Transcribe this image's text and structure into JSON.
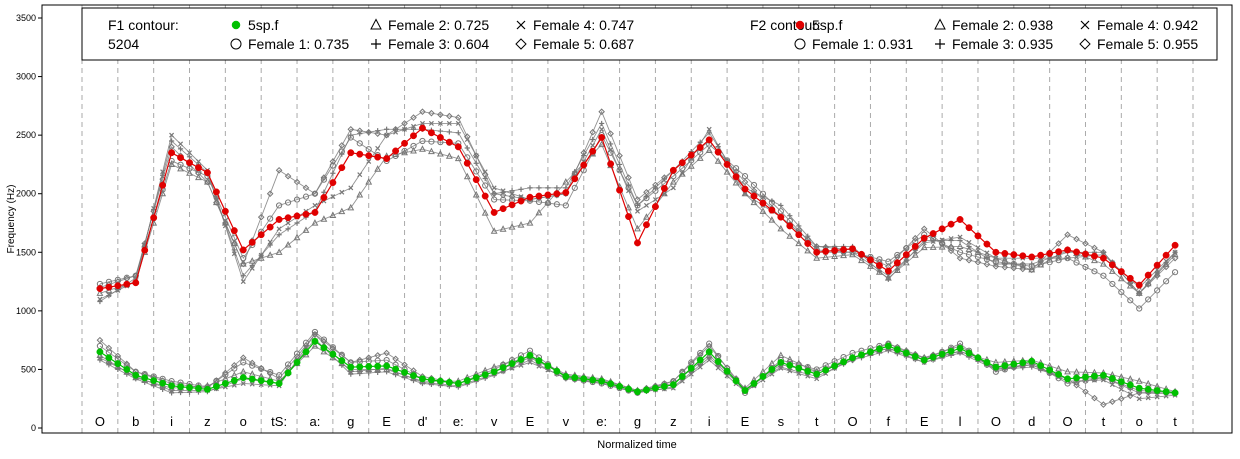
{
  "chart_data": {
    "type": "line",
    "xlabel": "Normalized time",
    "ylabel": "Frequency (Hz)",
    "ylim": [
      0,
      3600
    ],
    "yticks": [
      0,
      500,
      1000,
      1500,
      2000,
      2500,
      3000,
      3500
    ],
    "grid": "vertical dashed segment boundaries",
    "segments": [
      "O",
      "b",
      "i",
      "z",
      "o",
      "tS:",
      "a:",
      "g",
      "E",
      "d'",
      "e:",
      "v",
      "E",
      "v",
      "e:",
      "g",
      "z",
      "i",
      "E",
      "s",
      "t",
      "O",
      "f",
      "E",
      "l",
      "O",
      "d",
      "O",
      "t",
      "o",
      "t"
    ],
    "legend": {
      "position": "top",
      "f1_title": "F1 contour:",
      "f1_subtitle": "5204",
      "f1_series": [
        {
          "symbol": "filled-circle",
          "label": "5sp.f"
        },
        {
          "symbol": "open-circle",
          "label": "Female 1: 0.735"
        },
        {
          "symbol": "triangle",
          "label": "Female 2: 0.725"
        },
        {
          "symbol": "plus",
          "label": "Female 3: 0.604"
        },
        {
          "symbol": "cross",
          "label": "Female 4: 0.747"
        },
        {
          "symbol": "diamond",
          "label": "Female 5: 0.687"
        }
      ],
      "f2_title": "F2 contour:",
      "f2_series": [
        {
          "symbol": "filled-circle",
          "label": "5sp.f"
        },
        {
          "symbol": "open-circle",
          "label": "Female 1: 0.931"
        },
        {
          "symbol": "triangle",
          "label": "Female 2: 0.938"
        },
        {
          "symbol": "plus",
          "label": "Female 3: 0.935"
        },
        {
          "symbol": "cross",
          "label": "Female 4: 0.942"
        },
        {
          "symbol": "diamond",
          "label": "Female 5: 0.955"
        }
      ]
    },
    "colors": {
      "f1_mean": "#00c000",
      "f2_mean": "#e00000",
      "speakers": "#777777",
      "grid": "#aaaaaa"
    },
    "f2_series": [
      {
        "name": "5sp.f",
        "role": "mean",
        "values": [
          1190,
          1240,
          2350,
          2180,
          1520,
          1780,
          1840,
          2350,
          2300,
          2560,
          2400,
          1840,
          1970,
          2010,
          2480,
          1580,
          2200,
          2460,
          2040,
          1800,
          1500,
          1530,
          1340,
          1620,
          1780,
          1500,
          1460,
          1520,
          1450,
          1220,
          1560
        ]
      },
      {
        "name": "Female 1",
        "values": [
          1230,
          1300,
          2280,
          2150,
          1450,
          1900,
          2000,
          2480,
          2280,
          2450,
          2430,
          1950,
          1940,
          1900,
          2500,
          1900,
          2150,
          2420,
          2150,
          1850,
          1520,
          1500,
          1420,
          1650,
          1500,
          1420,
          1380,
          1450,
          1300,
          1020,
          1330
        ]
      },
      {
        "name": "Female 2",
        "values": [
          1150,
          1250,
          2250,
          2100,
          1400,
          1500,
          1750,
          1880,
          2320,
          2380,
          2300,
          1680,
          1750,
          2100,
          2420,
          1700,
          2100,
          2370,
          2000,
          1700,
          1450,
          1480,
          1280,
          1540,
          1550,
          1450,
          1350,
          1520,
          1400,
          1150,
          1480
        ]
      },
      {
        "name": "Female 3",
        "values": [
          1080,
          1280,
          2450,
          2180,
          1300,
          1650,
          1850,
          2500,
          2550,
          2550,
          2520,
          2000,
          2050,
          2050,
          2600,
          1900,
          2200,
          2520,
          2050,
          1900,
          1550,
          1550,
          1270,
          1600,
          1600,
          1400,
          1400,
          1500,
          1500,
          1150,
          1500
        ]
      },
      {
        "name": "Female 4",
        "values": [
          1100,
          1250,
          2500,
          2200,
          1250,
          1700,
          1900,
          2050,
          2500,
          2600,
          2600,
          2050,
          1950,
          2000,
          2550,
          1850,
          2050,
          2550,
          2000,
          1800,
          1500,
          1500,
          1300,
          1580,
          1630,
          1450,
          1450,
          1450,
          1480,
          1200,
          1500
        ]
      },
      {
        "name": "Female 5",
        "values": [
          1200,
          1300,
          2400,
          2100,
          1400,
          2200,
          2000,
          2550,
          2500,
          2700,
          2650,
          2000,
          1950,
          2000,
          2700,
          1950,
          2200,
          2450,
          2100,
          1800,
          1550,
          1520,
          1380,
          1700,
          1450,
          1380,
          1350,
          1650,
          1500,
          1150,
          1450
        ]
      }
    ],
    "f1_series": [
      {
        "name": "5sp.f",
        "role": "mean",
        "values": [
          650,
          450,
          360,
          330,
          430,
          380,
          740,
          520,
          530,
          420,
          380,
          480,
          620,
          440,
          400,
          310,
          370,
          650,
          320,
          560,
          460,
          600,
          700,
          580,
          680,
          520,
          570,
          420,
          450,
          340,
          300
        ]
      },
      {
        "name": "Female 1",
        "values": [
          700,
          480,
          400,
          350,
          560,
          450,
          820,
          560,
          580,
          420,
          380,
          500,
          660,
          430,
          380,
          300,
          400,
          720,
          300,
          580,
          500,
          640,
          720,
          580,
          720,
          480,
          560,
          380,
          430,
          320,
          300
        ]
      },
      {
        "name": "Female 2",
        "values": [
          620,
          430,
          340,
          360,
          480,
          400,
          700,
          500,
          500,
          400,
          400,
          520,
          610,
          460,
          420,
          320,
          380,
          620,
          340,
          620,
          480,
          600,
          680,
          600,
          650,
          560,
          580,
          480,
          470,
          400,
          310
        ]
      },
      {
        "name": "Female 3",
        "values": [
          580,
          420,
          300,
          310,
          420,
          380,
          760,
          460,
          480,
          380,
          350,
          450,
          580,
          420,
          380,
          300,
          350,
          600,
          330,
          520,
          440,
          580,
          660,
          560,
          640,
          500,
          520,
          420,
          430,
          300,
          290
        ]
      },
      {
        "name": "Female 4",
        "values": [
          600,
          440,
          320,
          320,
          380,
          360,
          800,
          480,
          510,
          390,
          360,
          460,
          560,
          430,
          390,
          310,
          340,
          580,
          310,
          510,
          420,
          600,
          680,
          560,
          660,
          510,
          540,
          400,
          410,
          250,
          280
        ]
      },
      {
        "name": "Female 5",
        "values": [
          750,
          480,
          380,
          340,
          600,
          420,
          800,
          560,
          640,
          440,
          380,
          480,
          600,
          450,
          410,
          320,
          400,
          700,
          330,
          540,
          480,
          580,
          720,
          600,
          700,
          500,
          540,
          420,
          200,
          300,
          310
        ]
      }
    ]
  }
}
